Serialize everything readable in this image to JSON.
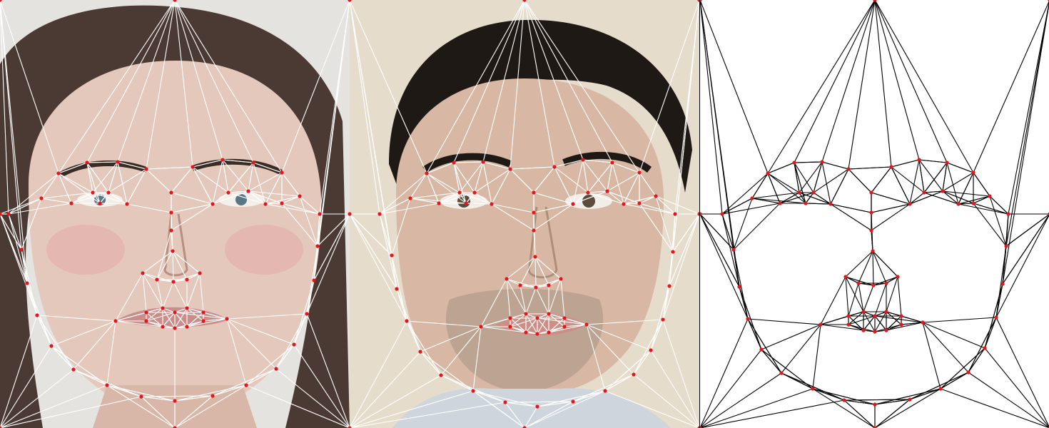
{
  "panels": [
    {
      "subject": "woman-face",
      "overlay": "white-mesh-red-landmarks"
    },
    {
      "subject": "man-face",
      "overlay": "white-mesh-red-landmarks"
    },
    {
      "subject": "mesh-only",
      "overlay": "black-mesh-red-landmarks"
    }
  ],
  "colors": {
    "landmark": "#e8141a",
    "mesh_on_photo": "#ffffff",
    "mesh_on_blank": "#000000",
    "background_left": "#e5e3df",
    "background_middle": "#e6dccb",
    "hair_left": "#4a3a33",
    "hair_middle": "#1f1915",
    "skin_left": "#e5c8bc",
    "skin_middle": "#d8b8a4",
    "shirt_middle": "#cfd5dc"
  }
}
